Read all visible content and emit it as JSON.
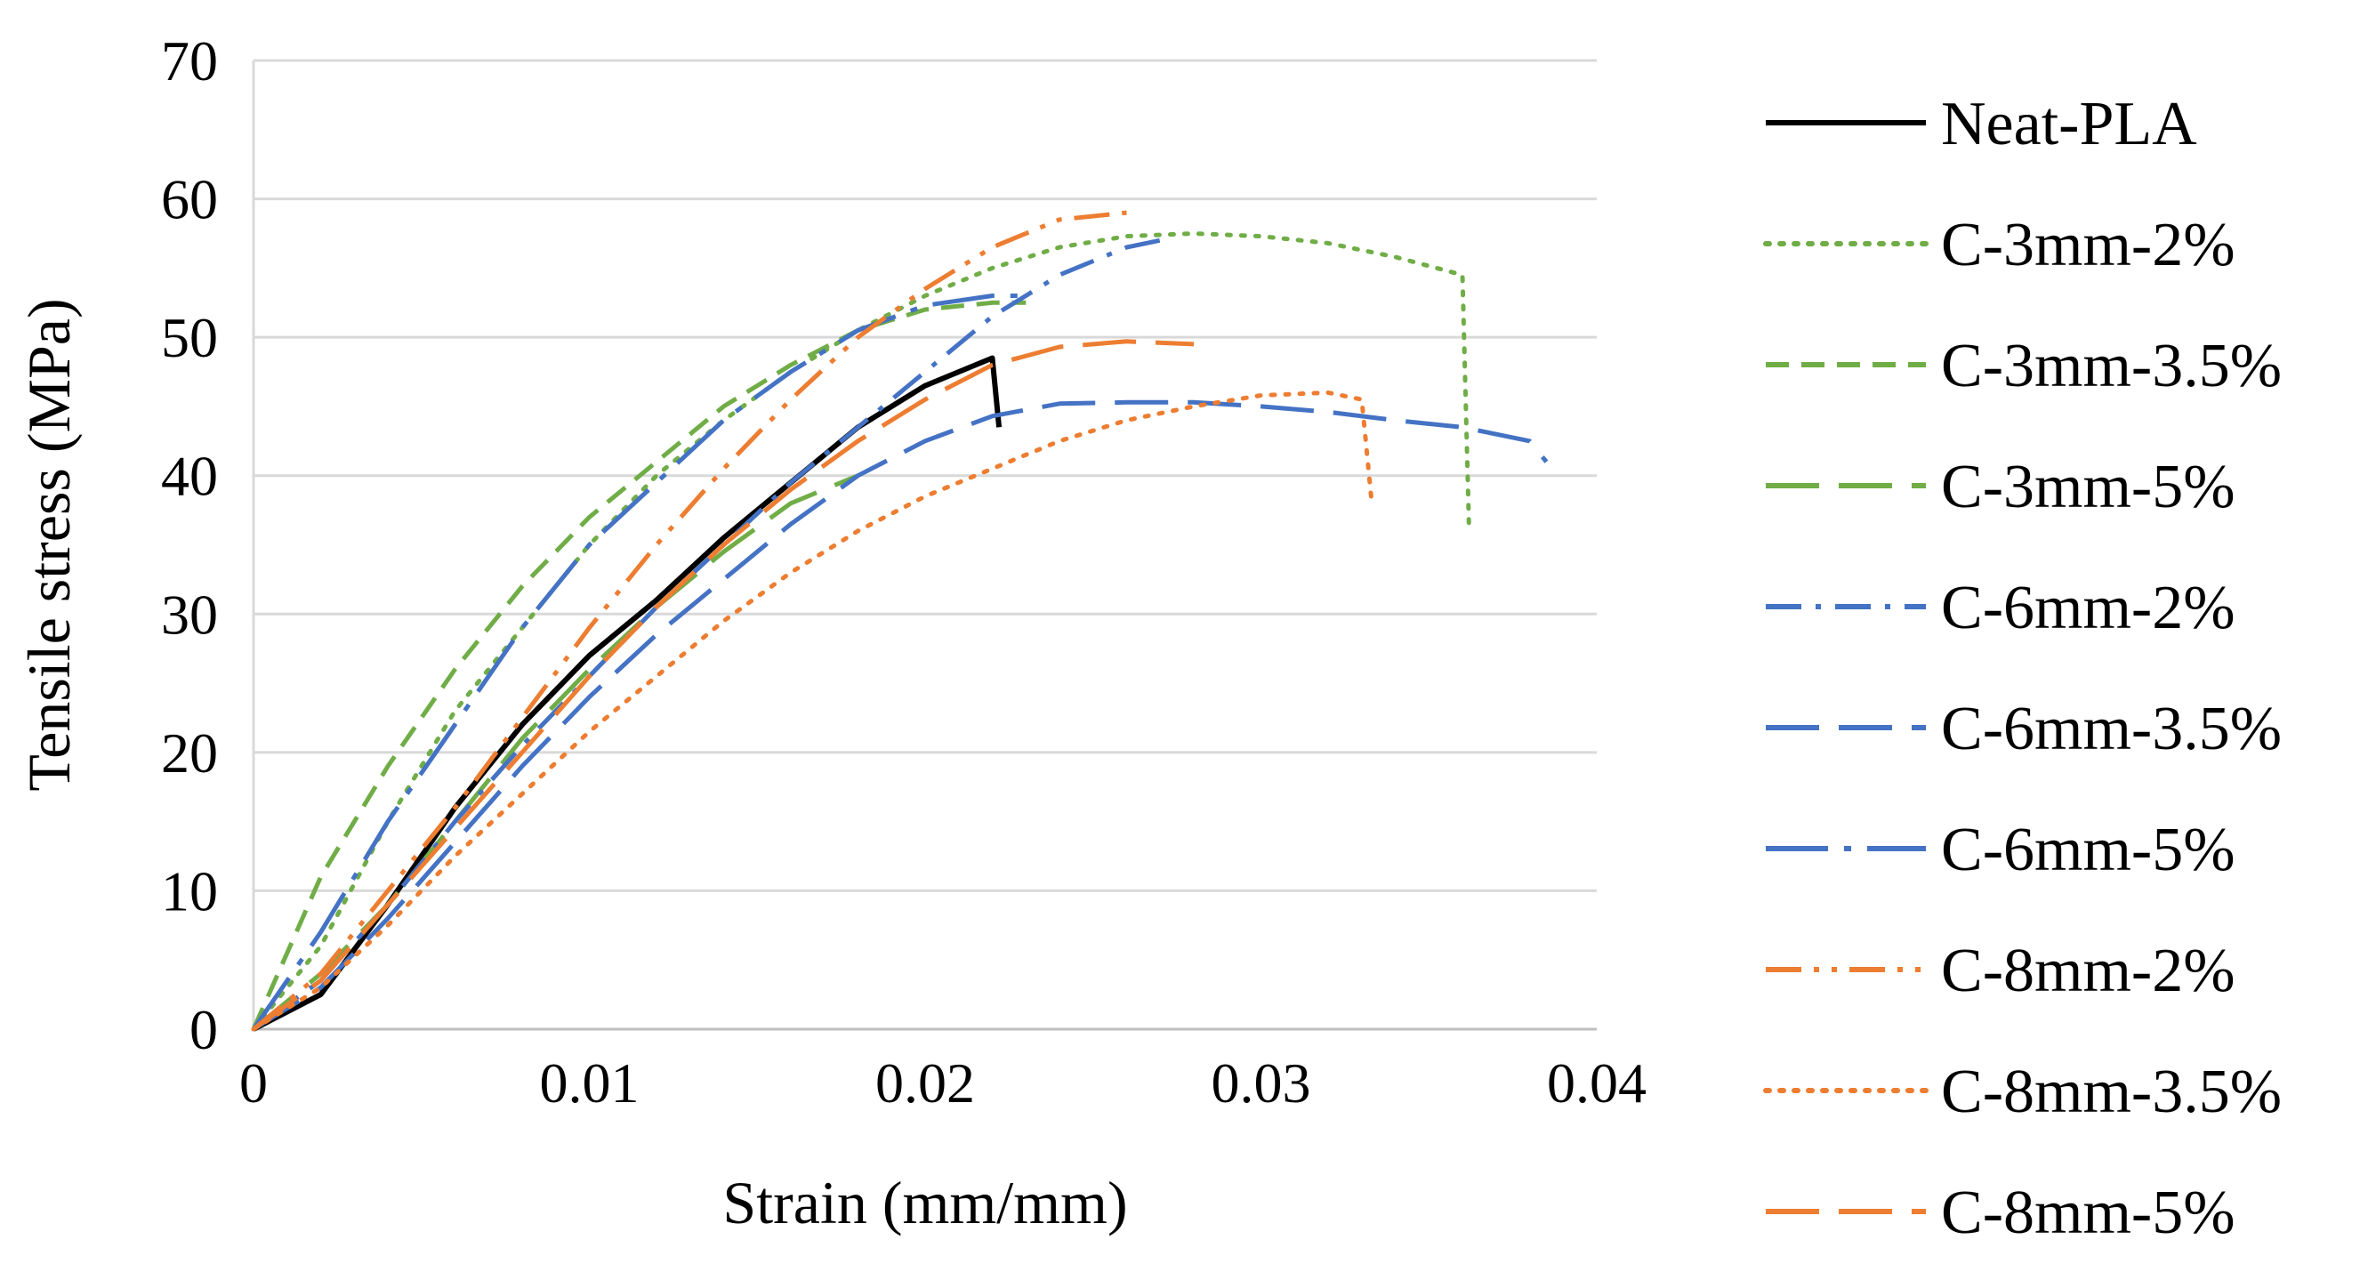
{
  "chart_data": {
    "type": "line",
    "title": "",
    "xlabel": "Strain (mm/mm)",
    "ylabel": "Tensile stress (MPa)",
    "xlim": [
      0,
      0.04
    ],
    "ylim": [
      0,
      70
    ],
    "x_ticks": [
      "0",
      "0.01",
      "0.02",
      "0.03",
      "0.04"
    ],
    "y_ticks": [
      "0",
      "10",
      "20",
      "30",
      "40",
      "50",
      "60",
      "70"
    ],
    "grid": "horizontal",
    "legend_position": "right",
    "series": [
      {
        "name": "Neat-PLA",
        "color": "#000000",
        "dash": "solid",
        "points": [
          [
            0,
            0
          ],
          [
            0.002,
            2.5
          ],
          [
            0.004,
            9
          ],
          [
            0.006,
            16
          ],
          [
            0.008,
            22
          ],
          [
            0.01,
            27
          ],
          [
            0.012,
            31
          ],
          [
            0.014,
            35.5
          ],
          [
            0.016,
            39.5
          ],
          [
            0.018,
            43.5
          ],
          [
            0.02,
            46.5
          ],
          [
            0.022,
            48.5
          ],
          [
            0.0222,
            43.5
          ]
        ]
      },
      {
        "name": "C-3mm-2%",
        "color": "#70AD47",
        "dash": "dot",
        "points": [
          [
            0,
            0
          ],
          [
            0.002,
            6
          ],
          [
            0.004,
            15
          ],
          [
            0.006,
            23
          ],
          [
            0.008,
            29
          ],
          [
            0.01,
            35
          ],
          [
            0.012,
            40
          ],
          [
            0.014,
            44
          ],
          [
            0.016,
            47.5
          ],
          [
            0.018,
            50.5
          ],
          [
            0.02,
            53
          ],
          [
            0.022,
            55
          ],
          [
            0.024,
            56.5
          ],
          [
            0.026,
            57.3
          ],
          [
            0.028,
            57.5
          ],
          [
            0.03,
            57.3
          ],
          [
            0.032,
            56.8
          ],
          [
            0.034,
            55.8
          ],
          [
            0.036,
            54.5
          ],
          [
            0.0362,
            36
          ]
        ]
      },
      {
        "name": "C-3mm-3.5%",
        "color": "#70AD47",
        "dash": "dash",
        "points": [
          [
            0,
            0
          ],
          [
            0.002,
            11
          ],
          [
            0.004,
            19
          ],
          [
            0.006,
            26
          ],
          [
            0.008,
            32
          ],
          [
            0.01,
            37
          ],
          [
            0.012,
            41
          ],
          [
            0.014,
            45
          ],
          [
            0.016,
            48
          ],
          [
            0.018,
            50.5
          ],
          [
            0.02,
            52
          ],
          [
            0.022,
            52.5
          ],
          [
            0.023,
            52.5
          ]
        ]
      },
      {
        "name": "C-3mm-5%",
        "color": "#70AD47",
        "dash": "longdash",
        "points": [
          [
            0,
            0
          ],
          [
            0.002,
            4
          ],
          [
            0.004,
            9
          ],
          [
            0.006,
            15
          ],
          [
            0.008,
            21
          ],
          [
            0.01,
            26
          ],
          [
            0.012,
            30.5
          ],
          [
            0.014,
            34.5
          ],
          [
            0.016,
            38
          ],
          [
            0.018,
            40
          ]
        ]
      },
      {
        "name": "C-6mm-2%",
        "color": "#4472C4",
        "dash": "dashdot",
        "points": [
          [
            0,
            0
          ],
          [
            0.002,
            3.5
          ],
          [
            0.004,
            9
          ],
          [
            0.006,
            15
          ],
          [
            0.008,
            20.5
          ],
          [
            0.01,
            25.5
          ],
          [
            0.012,
            30.5
          ],
          [
            0.014,
            35
          ],
          [
            0.016,
            39.5
          ],
          [
            0.018,
            43.5
          ],
          [
            0.02,
            47.5
          ],
          [
            0.022,
            51.5
          ],
          [
            0.024,
            54.5
          ],
          [
            0.026,
            56.5
          ],
          [
            0.027,
            57
          ]
        ]
      },
      {
        "name": "C-6mm-3.5%",
        "color": "#4472C4",
        "dash": "longdash",
        "points": [
          [
            0,
            0
          ],
          [
            0.002,
            3
          ],
          [
            0.004,
            8
          ],
          [
            0.006,
            13.5
          ],
          [
            0.008,
            19
          ],
          [
            0.01,
            24
          ],
          [
            0.012,
            28.5
          ],
          [
            0.014,
            32.5
          ],
          [
            0.016,
            36.5
          ],
          [
            0.018,
            40
          ],
          [
            0.02,
            42.5
          ],
          [
            0.022,
            44.3
          ],
          [
            0.024,
            45.2
          ],
          [
            0.026,
            45.3
          ],
          [
            0.028,
            45.3
          ],
          [
            0.03,
            45
          ],
          [
            0.032,
            44.6
          ],
          [
            0.034,
            44
          ],
          [
            0.036,
            43.5
          ],
          [
            0.038,
            42.5
          ],
          [
            0.0385,
            41
          ]
        ]
      },
      {
        "name": "C-6mm-5%",
        "color": "#4472C4",
        "dash": "dashdotlong",
        "points": [
          [
            0,
            0
          ],
          [
            0.002,
            7
          ],
          [
            0.004,
            15
          ],
          [
            0.006,
            22
          ],
          [
            0.008,
            29
          ],
          [
            0.01,
            35
          ],
          [
            0.012,
            39.5
          ],
          [
            0.014,
            44
          ],
          [
            0.016,
            47.5
          ],
          [
            0.018,
            50.5
          ],
          [
            0.02,
            52.3
          ],
          [
            0.022,
            53
          ],
          [
            0.023,
            53
          ]
        ]
      },
      {
        "name": "C-8mm-2%",
        "color": "#ED7D31",
        "dash": "dashdotdot",
        "points": [
          [
            0,
            0
          ],
          [
            0.002,
            4
          ],
          [
            0.004,
            10
          ],
          [
            0.006,
            16
          ],
          [
            0.008,
            22.5
          ],
          [
            0.01,
            29
          ],
          [
            0.012,
            35
          ],
          [
            0.014,
            40.5
          ],
          [
            0.016,
            45.5
          ],
          [
            0.018,
            50
          ],
          [
            0.02,
            53.5
          ],
          [
            0.022,
            56.5
          ],
          [
            0.024,
            58.5
          ],
          [
            0.026,
            59
          ]
        ]
      },
      {
        "name": "C-8mm-3.5%",
        "color": "#ED7D31",
        "dash": "dot",
        "points": [
          [
            0,
            0
          ],
          [
            0.002,
            3
          ],
          [
            0.004,
            7.5
          ],
          [
            0.006,
            12.5
          ],
          [
            0.008,
            17
          ],
          [
            0.01,
            21.5
          ],
          [
            0.012,
            25.5
          ],
          [
            0.014,
            29.5
          ],
          [
            0.016,
            33
          ],
          [
            0.018,
            36
          ],
          [
            0.02,
            38.5
          ],
          [
            0.022,
            40.5
          ],
          [
            0.024,
            42.5
          ],
          [
            0.026,
            44
          ],
          [
            0.028,
            45
          ],
          [
            0.03,
            45.8
          ],
          [
            0.032,
            46
          ],
          [
            0.033,
            45.5
          ],
          [
            0.0333,
            38
          ]
        ]
      },
      {
        "name": "C-8mm-5%",
        "color": "#ED7D31",
        "dash": "longdash",
        "points": [
          [
            0,
            0
          ],
          [
            0.002,
            3.5
          ],
          [
            0.004,
            9
          ],
          [
            0.006,
            14.5
          ],
          [
            0.008,
            20
          ],
          [
            0.01,
            25.5
          ],
          [
            0.012,
            30.5
          ],
          [
            0.014,
            35
          ],
          [
            0.016,
            39
          ],
          [
            0.018,
            42.5
          ],
          [
            0.02,
            45.5
          ],
          [
            0.022,
            48
          ],
          [
            0.024,
            49.3
          ],
          [
            0.026,
            49.7
          ],
          [
            0.028,
            49.5
          ]
        ]
      }
    ]
  }
}
